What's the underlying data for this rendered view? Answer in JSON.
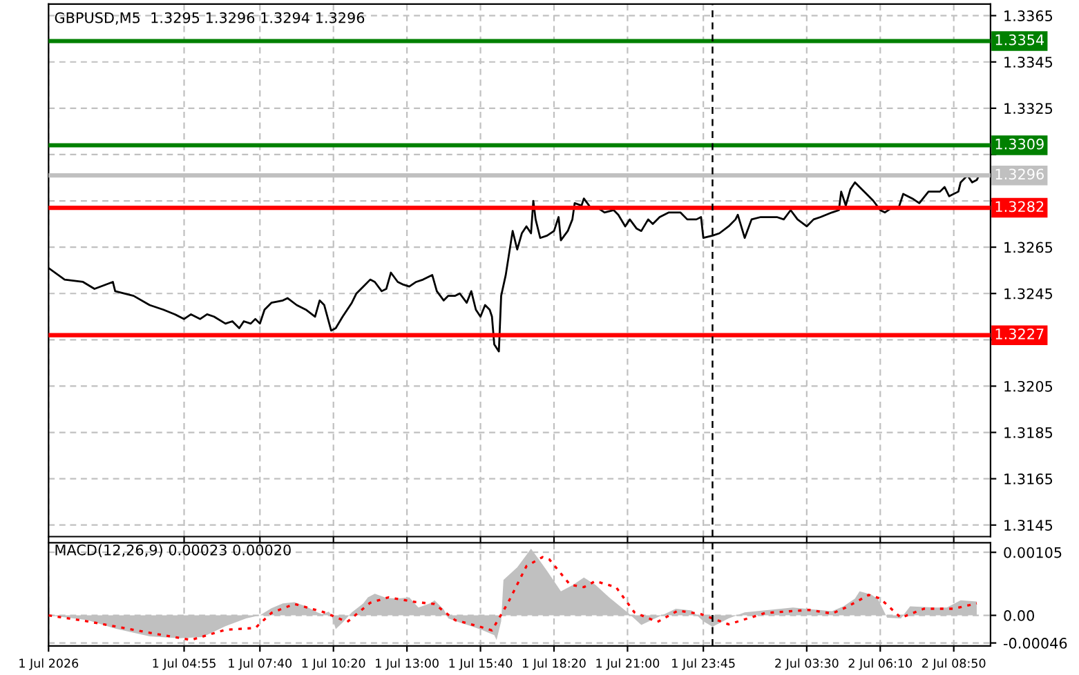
{
  "chart_data": [
    {
      "type": "line",
      "title": "GBPUSD,M5  1.3295 1.3296 1.3294 1.3296",
      "x": [
        "2026-07-01T00:00",
        "2026-07-01T00:35",
        "2026-07-01T01:15",
        "2026-07-01T01:40",
        "2026-07-01T02:20",
        "2026-07-01T02:25",
        "2026-07-01T03:05",
        "2026-07-01T03:40",
        "2026-07-01T04:10",
        "2026-07-01T04:35",
        "2026-07-01T04:55",
        "2026-07-01T05:10",
        "2026-07-01T05:30",
        "2026-07-01T05:45",
        "2026-07-01T06:00",
        "2026-07-01T06:25",
        "2026-07-01T06:40",
        "2026-07-01T06:55",
        "2026-07-01T07:05",
        "2026-07-01T07:20",
        "2026-07-01T07:30",
        "2026-07-01T07:40",
        "2026-07-01T07:50",
        "2026-07-01T08:05",
        "2026-07-01T08:30",
        "2026-07-01T08:40",
        "2026-07-01T09:00",
        "2026-07-01T09:20",
        "2026-07-01T09:40",
        "2026-07-01T09:50",
        "2026-07-01T10:00",
        "2026-07-01T10:15",
        "2026-07-01T10:25",
        "2026-07-01T10:40",
        "2026-07-01T11:00",
        "2026-07-01T11:10",
        "2026-07-01T11:25",
        "2026-07-01T11:40",
        "2026-07-01T11:50",
        "2026-07-01T12:05",
        "2026-07-01T12:15",
        "2026-07-01T12:25",
        "2026-07-01T12:40",
        "2026-07-01T12:50",
        "2026-07-01T13:05",
        "2026-07-01T13:20",
        "2026-07-01T13:35",
        "2026-07-01T13:55",
        "2026-07-01T14:05",
        "2026-07-01T14:20",
        "2026-07-01T14:30",
        "2026-07-01T14:45",
        "2026-07-01T14:55",
        "2026-07-01T15:10",
        "2026-07-01T15:20",
        "2026-07-01T15:30",
        "2026-07-01T15:40",
        "2026-07-01T15:50",
        "2026-07-01T16:00",
        "2026-07-01T16:05",
        "2026-07-01T16:10",
        "2026-07-01T16:20",
        "2026-07-01T16:25",
        "2026-07-01T16:35",
        "2026-07-01T16:50",
        "2026-07-01T17:00",
        "2026-07-01T17:10",
        "2026-07-01T17:20",
        "2026-07-01T17:30",
        "2026-07-01T17:35",
        "2026-07-01T17:40",
        "2026-07-01T17:50",
        "2026-07-01T18:05",
        "2026-07-01T18:20",
        "2026-07-01T18:30",
        "2026-07-01T18:35",
        "2026-07-01T18:50",
        "2026-07-01T19:00",
        "2026-07-01T19:05",
        "2026-07-01T19:20",
        "2026-07-01T19:25",
        "2026-07-01T19:40",
        "2026-07-01T19:55",
        "2026-07-01T20:10",
        "2026-07-01T20:30",
        "2026-07-01T20:40",
        "2026-07-01T20:55",
        "2026-07-01T21:05",
        "2026-07-01T21:20",
        "2026-07-01T21:30",
        "2026-07-01T21:45",
        "2026-07-01T21:55",
        "2026-07-01T22:10",
        "2026-07-01T22:30",
        "2026-07-01T22:55",
        "2026-07-01T23:10",
        "2026-07-01T23:30",
        "2026-07-01T23:40",
        "2026-07-01T23:45",
        "2026-07-02T00:05",
        "2026-07-02T00:20",
        "2026-07-02T00:40",
        "2026-07-02T00:55",
        "2026-07-02T01:00",
        "2026-07-02T01:15",
        "2026-07-02T01:30",
        "2026-07-02T01:50",
        "2026-07-02T02:25",
        "2026-07-02T02:40",
        "2026-07-02T02:55",
        "2026-07-02T03:10",
        "2026-07-02T03:30",
        "2026-07-02T03:45",
        "2026-07-02T04:00",
        "2026-07-02T04:25",
        "2026-07-02T04:40",
        "2026-07-02T04:45",
        "2026-07-02T04:55",
        "2026-07-02T05:05",
        "2026-07-02T05:15",
        "2026-07-02T05:25",
        "2026-07-02T05:45",
        "2026-07-02T05:55",
        "2026-07-02T06:10",
        "2026-07-02T06:20",
        "2026-07-02T06:35",
        "2026-07-02T06:50",
        "2026-07-02T07:00",
        "2026-07-02T07:20",
        "2026-07-02T07:35",
        "2026-07-02T07:55",
        "2026-07-02T08:20",
        "2026-07-02T08:30",
        "2026-07-02T08:40",
        "2026-07-02T09:00",
        "2026-07-02T09:05",
        "2026-07-02T09:20",
        "2026-07-02T09:30",
        "2026-07-02T09:40",
        "2026-07-02T09:45"
      ],
      "series": [
        {
          "color": "#000000",
          "values": [
            1.3256,
            1.3251,
            1.325,
            1.3247,
            1.325,
            1.3246,
            1.3244,
            1.324,
            1.3238,
            1.3236,
            1.3234,
            1.3236,
            1.3234,
            1.3236,
            1.3235,
            1.3232,
            1.3233,
            1.323,
            1.3233,
            1.3232,
            1.3234,
            1.3232,
            1.3238,
            1.3241,
            1.3242,
            1.3243,
            1.324,
            1.3238,
            1.3235,
            1.3242,
            1.324,
            1.3229,
            1.323,
            1.3235,
            1.3241,
            1.3245,
            1.3248,
            1.3251,
            1.325,
            1.3246,
            1.3247,
            1.3254,
            1.325,
            1.3249,
            1.3248,
            1.325,
            1.3251,
            1.3253,
            1.3246,
            1.3242,
            1.3244,
            1.3244,
            1.3245,
            1.3241,
            1.3246,
            1.3238,
            1.3235,
            1.324,
            1.3238,
            1.3235,
            1.3223,
            1.322,
            1.3244,
            1.3253,
            1.3272,
            1.3264,
            1.3271,
            1.3274,
            1.3271,
            1.3285,
            1.3277,
            1.3269,
            1.327,
            1.3272,
            1.3278,
            1.3268,
            1.3272,
            1.3277,
            1.3284,
            1.3283,
            1.3286,
            1.3282,
            1.3282,
            1.328,
            1.3281,
            1.3279,
            1.3274,
            1.3277,
            1.3273,
            1.3272,
            1.3277,
            1.3275,
            1.3278,
            1.328,
            1.328,
            1.3277,
            1.3277,
            1.3278,
            1.3269,
            1.327,
            1.3271,
            1.3274,
            1.3277,
            1.3279,
            1.3269,
            1.3277,
            1.3278,
            1.3278,
            1.3277,
            1.3281,
            1.3277,
            1.3274,
            1.3277,
            1.3278,
            1.328,
            1.3281,
            1.3289,
            1.3283,
            1.329,
            1.3293,
            1.3291,
            1.3287,
            1.3285,
            1.3281,
            1.328,
            1.3282,
            1.3282,
            1.3288,
            1.3286,
            1.3284,
            1.3289,
            1.3289,
            1.3291,
            1.3287,
            1.3289,
            1.3293,
            1.3296,
            1.3293,
            1.3294,
            1.3296
          ]
        }
      ],
      "xlim": [
        "2026-07-01T00:00",
        "2026-07-02T10:10"
      ],
      "xticks": [
        {
          "value": "2026-07-01T00:00",
          "label": null
        },
        {
          "value": "2026-07-01T04:55",
          "label": null
        },
        {
          "value": "2026-07-01T07:40",
          "label": null
        },
        {
          "value": "2026-07-01T10:20",
          "label": null
        },
        {
          "value": "2026-07-01T13:00",
          "label": null
        },
        {
          "value": "2026-07-01T15:40",
          "label": null
        },
        {
          "value": "2026-07-01T18:20",
          "label": null
        },
        {
          "value": "2026-07-01T21:00",
          "label": null
        },
        {
          "value": "2026-07-01T23:45",
          "label": null
        },
        {
          "value": "2026-07-02T03:30",
          "label": null
        },
        {
          "value": "2026-07-02T06:10",
          "label": null
        },
        {
          "value": "2026-07-02T08:50",
          "label": null
        }
      ],
      "ylim": [
        1.314,
        1.337
      ],
      "yticks": [
        1.3145,
        1.3165,
        1.3185,
        1.3205,
        {
          "value": 1.3225,
          "label": null
        },
        1.3245,
        1.3265,
        {
          "value": 1.3285,
          "label": null
        },
        {
          "value": 1.3305,
          "label": null
        },
        1.3325,
        1.3345,
        1.3365
      ],
      "tick_labels": "y",
      "grid": true,
      "ref_lines": [
        {
          "axis": "y",
          "value": 1.3354,
          "label": "1.3354",
          "color": "#008000"
        },
        {
          "axis": "y",
          "value": 1.3309,
          "label": "1.3309",
          "color": "#008000"
        },
        {
          "axis": "y",
          "value": 1.3296,
          "label": "1.3296",
          "color": "#c0c0c0"
        },
        {
          "axis": "y",
          "value": 1.3282,
          "label": "1.3282",
          "color": "#ff0000"
        },
        {
          "axis": "y",
          "value": 1.3227,
          "label": "1.3227",
          "color": "#ff0000"
        },
        {
          "axis": "x",
          "value": "2026-07-02T00:05",
          "color": "#000000",
          "line_style": "dashed"
        }
      ]
    },
    {
      "type": "area",
      "title": "MACD(12,26,9) 0.00023 0.00020",
      "series": [
        {
          "type": "area",
          "color": "#c0c0c0",
          "x": [
            "2026-07-01T00:00",
            "2026-07-01T01:25",
            "2026-07-01T02:25",
            "2026-07-01T03:40",
            "2026-07-01T04:45",
            "2026-07-01T05:35",
            "2026-07-01T06:25",
            "2026-07-01T07:10",
            "2026-07-01T07:40",
            "2026-07-01T08:05",
            "2026-07-01T08:30",
            "2026-07-01T08:55",
            "2026-07-01T09:20",
            "2026-07-01T09:45",
            "2026-07-01T09:55",
            "2026-07-01T10:10",
            "2026-07-01T10:15",
            "2026-07-01T10:20",
            "2026-07-01T10:25",
            "2026-07-01T10:40",
            "2026-07-01T11:00",
            "2026-07-01T11:25",
            "2026-07-01T11:35",
            "2026-07-01T11:50",
            "2026-07-01T12:15",
            "2026-07-01T12:40",
            "2026-07-01T13:05",
            "2026-07-01T13:25",
            "2026-07-01T13:50",
            "2026-07-01T14:00",
            "2026-07-01T14:20",
            "2026-07-01T14:30",
            "2026-07-01T14:55",
            "2026-07-01T15:20",
            "2026-07-01T15:45",
            "2026-07-01T16:10",
            "2026-07-01T16:15",
            "2026-07-01T16:25",
            "2026-07-01T16:30",
            "2026-07-01T17:00",
            "2026-07-01T17:30",
            "2026-07-01T17:50",
            "2026-07-01T18:05",
            "2026-07-01T18:35",
            "2026-07-01T19:00",
            "2026-07-01T19:25",
            "2026-07-01T19:50",
            "2026-07-01T20:20",
            "2026-07-01T21:00",
            "2026-07-01T21:30",
            "2026-07-01T22:00",
            "2026-07-01T22:15",
            "2026-07-01T22:45",
            "2026-07-01T23:20",
            "2026-07-01T23:45",
            "2026-07-02T00:05",
            "2026-07-02T00:40",
            "2026-07-02T01:15",
            "2026-07-02T03:00",
            "2026-07-02T04:25",
            "2026-07-02T04:50",
            "2026-07-02T05:15",
            "2026-07-02T05:25",
            "2026-07-02T05:50",
            "2026-07-02T06:05",
            "2026-07-02T06:25",
            "2026-07-02T06:55",
            "2026-07-02T07:15",
            "2026-07-02T08:10",
            "2026-07-02T08:35",
            "2026-07-02T09:05",
            "2026-07-02T09:40"
          ],
          "values": [
            0,
            -8e-05,
            -0.00022,
            -0.00035,
            -0.00038,
            -0.00036,
            -0.00018,
            -5e-05,
            0,
            0.00012,
            0.0002,
            0.00022,
            0.00015,
            5e-05,
            2e-05,
            6e-05,
            1e-05,
            -0.0001,
            -0.00023,
            -0.00012,
            5e-05,
            0.0002,
            0.0003,
            0.00036,
            0.00029,
            0.00028,
            0.0003,
            0.00013,
            0.0002,
            0.00025,
            0.0001,
            -5e-05,
            -0.00012,
            -0.00018,
            -0.00025,
            -0.00033,
            -0.00041,
            -0.0001,
            0.00059,
            0.0008,
            0.00111,
            0.0009,
            0.00074,
            0.0004,
            0.0005,
            0.00063,
            0.00051,
            0.0003,
            5e-05,
            -0.00016,
            -5e-05,
            0,
            0.00011,
            8e-05,
            -0.0001,
            -0.00019,
            -5e-05,
            5e-05,
            0.00013,
            7e-05,
            0.00015,
            0.00028,
            0.0004,
            0.00035,
            0.00027,
            -4e-05,
            -5e-05,
            0.00015,
            0.00013,
            0.00013,
            0.00025,
            0.00023
          ]
        },
        {
          "type": "line",
          "color": "#ff0000",
          "line_style": "dotted",
          "x": [
            "2026-07-01T00:00",
            "2026-07-01T01:25",
            "2026-07-01T03:40",
            "2026-07-01T05:10",
            "2026-07-01T06:25",
            "2026-07-01T07:30",
            "2026-07-01T08:05",
            "2026-07-01T08:55",
            "2026-07-01T10:00",
            "2026-07-01T10:50",
            "2026-07-01T11:40",
            "2026-07-01T12:20",
            "2026-07-01T13:20",
            "2026-07-01T14:00",
            "2026-07-01T14:45",
            "2026-07-01T15:35",
            "2026-07-01T16:05",
            "2026-07-01T16:40",
            "2026-07-01T17:20",
            "2026-07-01T17:55",
            "2026-07-01T18:10",
            "2026-07-01T18:55",
            "2026-07-01T19:25",
            "2026-07-01T19:50",
            "2026-07-01T20:35",
            "2026-07-01T21:15",
            "2026-07-01T22:05",
            "2026-07-01T22:50",
            "2026-07-01T23:40",
            "2026-07-02T00:40",
            "2026-07-02T02:00",
            "2026-07-02T03:35",
            "2026-07-02T04:25",
            "2026-07-02T04:55",
            "2026-07-02T05:45",
            "2026-07-02T06:10",
            "2026-07-02T06:55",
            "2026-07-02T07:45",
            "2026-07-02T08:50",
            "2026-07-02T09:40"
          ],
          "values": [
            0,
            -0.0001,
            -0.00029,
            -0.00041,
            -0.00024,
            -0.00021,
            4e-05,
            0.00019,
            5e-05,
            -0.00011,
            0.00021,
            0.0003,
            0.00022,
            0.00019,
            -8e-05,
            -0.00018,
            -0.00025,
            0.00021,
            0.00082,
            0.00097,
            0.00093,
            0.00051,
            0.00047,
            0.00057,
            0.00047,
            5e-05,
            -0.00011,
            8e-05,
            2e-05,
            -0.00015,
            4e-05,
            9e-05,
            3e-05,
            0.00013,
            0.00034,
            0.00028,
            -4e-05,
            0.00011,
            0.00011,
            0.0002
          ]
        }
      ],
      "xlim": [
        "2026-07-01T00:00",
        "2026-07-02T10:10"
      ],
      "xticks": [
        {
          "value": "2026-07-01T00:00",
          "label": "1 Jul 2026"
        },
        {
          "value": "2026-07-01T04:55",
          "label": "1 Jul 04:55"
        },
        {
          "value": "2026-07-01T07:40",
          "label": "1 Jul 07:40"
        },
        {
          "value": "2026-07-01T10:20",
          "label": "1 Jul 10:20"
        },
        {
          "value": "2026-07-01T13:00",
          "label": "1 Jul 13:00"
        },
        {
          "value": "2026-07-01T15:40",
          "label": "1 Jul 15:40"
        },
        {
          "value": "2026-07-01T18:20",
          "label": "1 Jul 18:20"
        },
        {
          "value": "2026-07-01T21:00",
          "label": "1 Jul 21:00"
        },
        {
          "value": "2026-07-01T23:45",
          "label": "1 Jul 23:45"
        },
        {
          "value": "2026-07-02T03:30",
          "label": "2 Jul 03:30"
        },
        {
          "value": "2026-07-02T06:10",
          "label": "2 Jul 06:10"
        },
        {
          "value": "2026-07-02T08:50",
          "label": "2 Jul 08:50"
        }
      ],
      "ylim": [
        -0.00051,
        0.00121
      ],
      "yticks": [
        {
          "value": -0.00046,
          "label": "-0.00046"
        },
        {
          "value": 0,
          "label": "0.00"
        },
        0.00105
      ],
      "grid": true,
      "ref_lines": [
        {
          "axis": "x",
          "value": "2026-07-02T00:05",
          "color": "#000000",
          "line_style": "dashed"
        }
      ]
    }
  ]
}
